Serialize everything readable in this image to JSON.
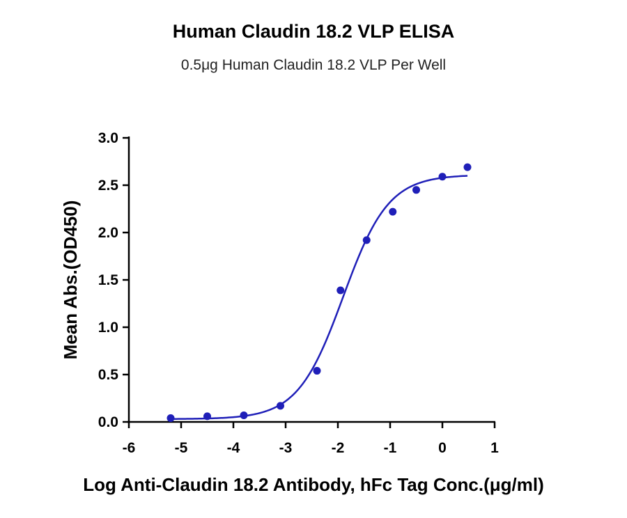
{
  "title": "Human Claudin 18.2 VLP ELISA",
  "subtitle": "0.5μg Human Claudin 18.2 VLP Per Well",
  "colors": {
    "series": "#1f1fb8",
    "axis": "#000000",
    "background": "#ffffff"
  },
  "chart_data": {
    "type": "scatter",
    "title": "Human Claudin 18.2 VLP ELISA",
    "subtitle": "0.5μg Human Claudin 18.2 VLP Per Well",
    "xlabel": "Log Anti-Claudin 18.2 Antibody, hFc  Tag Conc.(μg/ml)",
    "ylabel": "Mean Abs.(OD450)",
    "xlim": [
      -6,
      1
    ],
    "ylim": [
      0,
      3.0
    ],
    "x_ticks": [
      -6,
      -5,
      -4,
      -3,
      -2,
      -1,
      0,
      1
    ],
    "x_tick_labels": [
      "-6",
      "-5",
      "-4",
      "-3",
      "-2",
      "-1",
      "0",
      "1"
    ],
    "y_ticks": [
      0,
      0.5,
      1.0,
      1.5,
      2.0,
      2.5,
      3.0
    ],
    "y_tick_labels": [
      "0.0",
      "0.5",
      "1.0",
      "1.5",
      "2.0",
      "2.5",
      "3.0"
    ],
    "grid": false,
    "series": [
      {
        "x": [
          -5.2,
          -4.5,
          -3.8,
          -3.1,
          -2.4,
          -1.95,
          -1.45,
          -0.95,
          -0.5,
          0.0,
          0.48
        ],
        "y": [
          0.04,
          0.06,
          0.07,
          0.17,
          0.54,
          1.39,
          1.92,
          2.22,
          2.45,
          2.59,
          2.69
        ]
      }
    ],
    "fit_curve": {
      "model": "4PL",
      "bottom": 0.03,
      "top": 2.61,
      "log_ec50": -1.9,
      "hill_slope": 1.0,
      "x_range": [
        -5.2,
        0.48
      ]
    }
  }
}
